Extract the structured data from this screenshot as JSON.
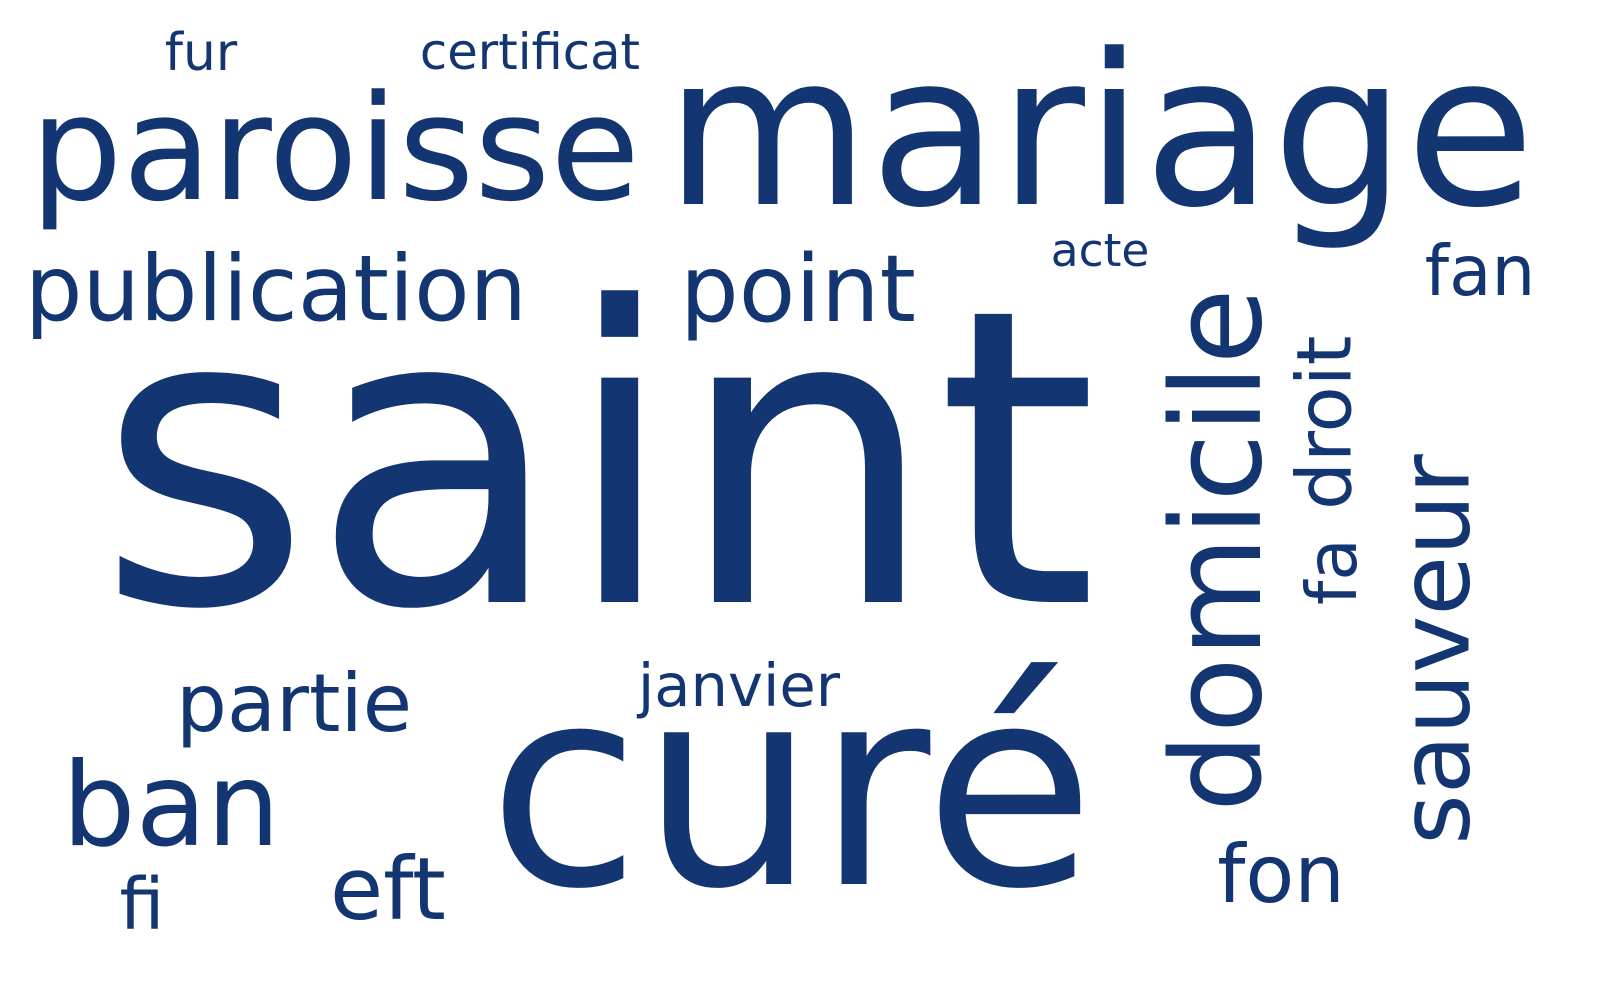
{
  "cloud": {
    "color": "#133672",
    "words": [
      {
        "id": "saint",
        "text": "saint"
      },
      {
        "id": "mariage",
        "text": "mariage"
      },
      {
        "id": "cure",
        "text": "curé"
      },
      {
        "id": "paroisse",
        "text": "paroisse"
      },
      {
        "id": "domicile",
        "text": "domicile"
      },
      {
        "id": "sauveur",
        "text": "sauveur"
      },
      {
        "id": "publication",
        "text": "publication"
      },
      {
        "id": "point",
        "text": "point"
      },
      {
        "id": "ban",
        "text": "ban"
      },
      {
        "id": "partie",
        "text": "partie"
      },
      {
        "id": "janvier",
        "text": "janvier"
      },
      {
        "id": "certificat",
        "text": "certificat"
      },
      {
        "id": "fur",
        "text": "fur"
      },
      {
        "id": "acte",
        "text": "acte"
      },
      {
        "id": "fan",
        "text": "fan"
      },
      {
        "id": "droit",
        "text": "droit"
      },
      {
        "id": "fa",
        "text": "fa"
      },
      {
        "id": "fon",
        "text": "fon"
      },
      {
        "id": "eft",
        "text": "eft"
      },
      {
        "id": "fi",
        "text": "fi"
      }
    ]
  }
}
